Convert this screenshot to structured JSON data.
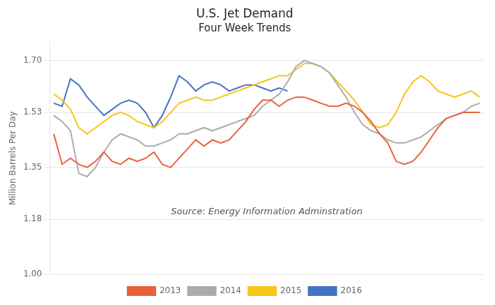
{
  "chart_data": {
    "type": "line",
    "title": "U.S. Jet Demand",
    "subtitle": "Four Week Trends",
    "y_label": "Million Barrels Per Day",
    "annotations": [
      "Source: Energy Information Adminstration"
    ],
    "categories": [
      null,
      null,
      null,
      null,
      null,
      null,
      null,
      null,
      null,
      null,
      null,
      null,
      null,
      null,
      null,
      null,
      null,
      null,
      null,
      null,
      null,
      null,
      null,
      null,
      null,
      null,
      null,
      null,
      null,
      null,
      null,
      null,
      null,
      null,
      null,
      null,
      null,
      null,
      null,
      null,
      null,
      null,
      null,
      null,
      null,
      null,
      null,
      null,
      null,
      null,
      null,
      null
    ],
    "series": [
      {
        "name": "2013",
        "color": "#E8603A",
        "values": [
          1.46,
          1.36,
          1.38,
          1.36,
          1.35,
          1.37,
          1.4,
          1.37,
          1.36,
          1.38,
          1.37,
          1.38,
          1.4,
          1.36,
          1.35,
          1.38,
          1.41,
          1.44,
          1.42,
          1.44,
          1.43,
          1.44,
          1.47,
          1.5,
          1.54,
          1.57,
          1.57,
          1.55,
          1.57,
          1.58,
          1.58,
          1.57,
          1.56,
          1.55,
          1.55,
          1.56,
          1.55,
          1.53,
          1.5,
          1.46,
          1.43,
          1.37,
          1.36,
          1.37,
          1.4,
          1.44,
          1.48,
          1.51,
          1.52,
          1.53,
          1.53,
          1.53
        ]
      },
      {
        "name": "2014",
        "color": "#ABABAB",
        "values": [
          1.52,
          1.5,
          1.47,
          1.33,
          1.32,
          1.35,
          1.4,
          1.44,
          1.46,
          1.45,
          1.44,
          1.42,
          1.42,
          1.43,
          1.44,
          1.46,
          1.46,
          1.47,
          1.48,
          1.47,
          1.48,
          1.49,
          1.5,
          1.51,
          1.52,
          1.55,
          1.57,
          1.59,
          1.63,
          1.68,
          1.7,
          1.69,
          1.68,
          1.66,
          1.62,
          1.58,
          1.53,
          1.49,
          1.47,
          1.46,
          1.44,
          1.43,
          1.43,
          1.44,
          1.45,
          1.47,
          1.49,
          1.51,
          1.52,
          1.53,
          1.55,
          1.56
        ]
      },
      {
        "name": "2015",
        "color": "#F5C518",
        "values": [
          1.59,
          1.57,
          1.54,
          1.48,
          1.46,
          1.48,
          1.5,
          1.52,
          1.53,
          1.52,
          1.5,
          1.49,
          1.48,
          1.5,
          1.53,
          1.56,
          1.57,
          1.58,
          1.57,
          1.57,
          1.58,
          1.59,
          1.6,
          1.61,
          1.62,
          1.63,
          1.64,
          1.65,
          1.65,
          1.67,
          1.69,
          1.69,
          1.68,
          1.66,
          1.63,
          1.6,
          1.57,
          1.53,
          1.49,
          1.48,
          1.49,
          1.53,
          1.59,
          1.63,
          1.65,
          1.63,
          1.6,
          1.59,
          1.58,
          1.59,
          1.6,
          1.58
        ]
      },
      {
        "name": "2016",
        "color": "#4472C4",
        "values": [
          1.56,
          1.55,
          1.64,
          1.62,
          1.58,
          1.55,
          1.52,
          1.54,
          1.56,
          1.57,
          1.56,
          1.53,
          1.48,
          1.52,
          1.58,
          1.65,
          1.63,
          1.6,
          1.62,
          1.63,
          1.62,
          1.6,
          1.61,
          1.62,
          1.62,
          1.61,
          1.6,
          1.61,
          1.6,
          null,
          null,
          null,
          null,
          null,
          null,
          null,
          null,
          null,
          null,
          null,
          null,
          null,
          null,
          null,
          null,
          null,
          null,
          null,
          null,
          null,
          null,
          null
        ]
      }
    ],
    "ylim": [
      1.0,
      1.76
    ],
    "yticks": [
      {
        "value": 1.0,
        "label": "1.00"
      },
      1.18,
      1.35,
      1.53,
      {
        "value": 1.7,
        "label": "1.70"
      }
    ],
    "grid": true,
    "legend": "bottom",
    "tick_labels": "y"
  }
}
